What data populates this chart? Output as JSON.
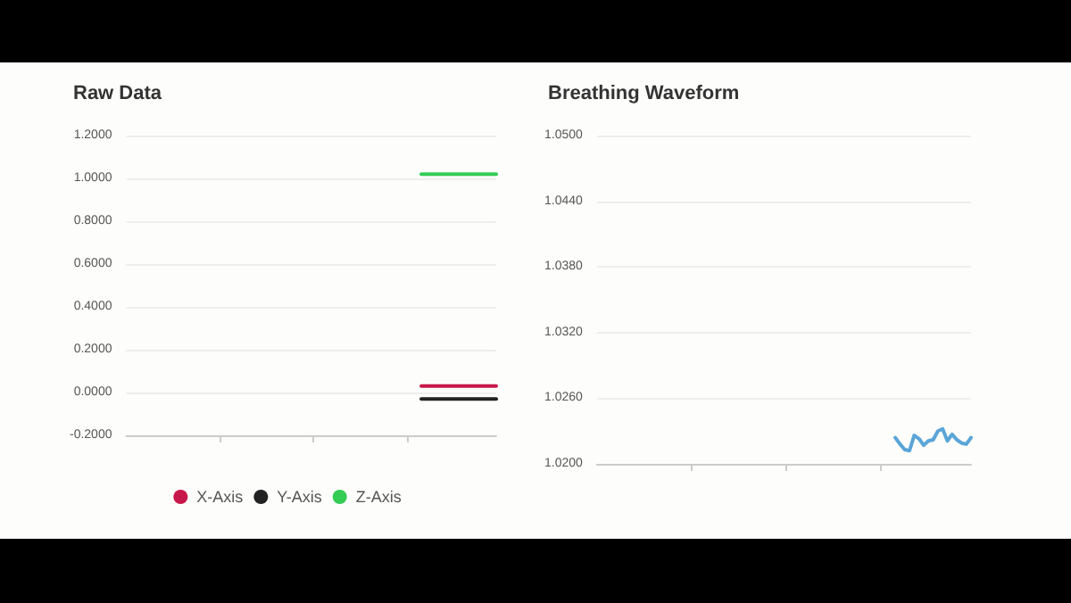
{
  "chart_data": [
    {
      "type": "line",
      "title": "Raw Data",
      "categories": [
        null,
        null,
        null,
        null,
        null,
        null,
        null,
        null,
        null,
        null,
        null,
        null,
        null,
        null,
        null,
        null,
        null,
        null,
        null,
        null,
        null,
        null,
        null,
        null,
        null,
        null,
        null,
        null,
        null,
        null,
        null,
        null,
        null,
        null,
        null,
        null,
        null,
        null,
        null,
        null,
        null,
        null,
        null,
        null,
        null,
        null,
        null,
        null,
        null,
        null,
        null,
        null,
        null,
        null,
        null,
        null,
        null,
        null,
        null,
        null,
        null,
        null,
        null,
        null,
        null,
        null,
        null,
        null,
        null,
        null,
        null,
        null,
        null,
        null,
        null,
        null,
        null,
        null,
        null,
        null
      ],
      "series": [
        {
          "name": "X-Axis",
          "color": "#c8174a",
          "values": [
            null,
            null,
            null,
            null,
            null,
            null,
            null,
            null,
            null,
            null,
            null,
            null,
            null,
            null,
            null,
            null,
            null,
            null,
            null,
            null,
            null,
            null,
            null,
            null,
            null,
            null,
            null,
            null,
            null,
            null,
            null,
            null,
            null,
            null,
            null,
            null,
            null,
            null,
            null,
            null,
            null,
            null,
            null,
            null,
            null,
            null,
            null,
            null,
            null,
            null,
            null,
            null,
            null,
            null,
            null,
            null,
            null,
            null,
            null,
            null,
            null,
            null,
            null,
            0.03,
            0.03,
            0.03,
            0.03,
            0.03,
            0.03,
            0.03,
            0.03,
            0.03,
            0.03,
            0.03,
            0.03,
            0.03,
            0.03,
            0.03,
            0.03,
            0.03
          ]
        },
        {
          "name": "Y-Axis",
          "color": "#222222",
          "values": [
            null,
            null,
            null,
            null,
            null,
            null,
            null,
            null,
            null,
            null,
            null,
            null,
            null,
            null,
            null,
            null,
            null,
            null,
            null,
            null,
            null,
            null,
            null,
            null,
            null,
            null,
            null,
            null,
            null,
            null,
            null,
            null,
            null,
            null,
            null,
            null,
            null,
            null,
            null,
            null,
            null,
            null,
            null,
            null,
            null,
            null,
            null,
            null,
            null,
            null,
            null,
            null,
            null,
            null,
            null,
            null,
            null,
            null,
            null,
            null,
            null,
            null,
            null,
            -0.03,
            -0.03,
            -0.03,
            -0.03,
            -0.03,
            -0.03,
            -0.03,
            -0.03,
            -0.03,
            -0.03,
            -0.03,
            -0.03,
            -0.03,
            -0.03,
            -0.03,
            -0.03,
            -0.03
          ]
        },
        {
          "name": "Z-Axis",
          "color": "#33cc55",
          "values": [
            null,
            null,
            null,
            null,
            null,
            null,
            null,
            null,
            null,
            null,
            null,
            null,
            null,
            null,
            null,
            null,
            null,
            null,
            null,
            null,
            null,
            null,
            null,
            null,
            null,
            null,
            null,
            null,
            null,
            null,
            null,
            null,
            null,
            null,
            null,
            null,
            null,
            null,
            null,
            null,
            null,
            null,
            null,
            null,
            null,
            null,
            null,
            null,
            null,
            null,
            null,
            null,
            null,
            null,
            null,
            null,
            null,
            null,
            null,
            null,
            null,
            null,
            null,
            1.02,
            1.02,
            1.02,
            1.02,
            1.02,
            1.02,
            1.02,
            1.02,
            1.02,
            1.02,
            1.02,
            1.02,
            1.02,
            1.02,
            1.02,
            1.02,
            1.02
          ]
        }
      ],
      "ylim": [
        -0.2,
        1.2
      ],
      "yticks": [
        {
          "value": -0.2,
          "label": "-0.2000"
        },
        {
          "value": 0,
          "label": "0.0000"
        },
        {
          "value": 0.2,
          "label": "0.2000"
        },
        {
          "value": 0.4,
          "label": "0.4000"
        },
        {
          "value": 0.6,
          "label": "0.6000"
        },
        {
          "value": 0.8,
          "label": "0.8000"
        },
        {
          "value": 1,
          "label": "1.0000"
        },
        {
          "value": 1.2,
          "label": "1.2000"
        }
      ],
      "grid": "y",
      "legend": "bottom",
      "tick_labels": "y",
      "marker": "none",
      "line_style": "solid"
    },
    {
      "type": "line",
      "title": "Breathing Waveform",
      "categories": [
        null,
        null,
        null,
        null,
        null,
        null,
        null,
        null,
        null,
        null,
        null,
        null,
        null,
        null,
        null,
        null,
        null,
        null,
        null,
        null,
        null,
        null,
        null,
        null,
        null,
        null,
        null,
        null,
        null,
        null,
        null,
        null,
        null,
        null,
        null,
        null,
        null,
        null,
        null,
        null,
        null,
        null,
        null,
        null,
        null,
        null,
        null,
        null,
        null,
        null,
        null,
        null,
        null,
        null,
        null,
        null,
        null,
        null,
        null,
        null,
        null,
        null,
        null,
        null,
        null,
        null,
        null,
        null,
        null,
        null,
        null,
        null,
        null,
        null,
        null,
        null,
        null,
        null,
        null,
        null
      ],
      "series": [
        {
          "color": "#5aa5d8",
          "values": [
            null,
            null,
            null,
            null,
            null,
            null,
            null,
            null,
            null,
            null,
            null,
            null,
            null,
            null,
            null,
            null,
            null,
            null,
            null,
            null,
            null,
            null,
            null,
            null,
            null,
            null,
            null,
            null,
            null,
            null,
            null,
            null,
            null,
            null,
            null,
            null,
            null,
            null,
            null,
            null,
            null,
            null,
            null,
            null,
            null,
            null,
            null,
            null,
            null,
            null,
            null,
            null,
            null,
            null,
            null,
            null,
            null,
            null,
            null,
            null,
            null,
            null,
            null,
            1.0224,
            1.0218,
            1.0213,
            1.0212,
            1.0226,
            1.0223,
            1.0217,
            1.0221,
            1.0222,
            1.023,
            1.0232,
            1.0221,
            1.0227,
            1.0222,
            1.0219,
            1.0218,
            1.0224
          ]
        }
      ],
      "ylim": [
        1.02,
        1.05
      ],
      "yticks": [
        {
          "value": 1.02,
          "label": "1.0200"
        },
        {
          "value": 1.026,
          "label": "1.0260"
        },
        {
          "value": 1.032,
          "label": "1.0320"
        },
        {
          "value": 1.038,
          "label": "1.0380"
        },
        {
          "value": 1.044,
          "label": "1.0440"
        },
        {
          "value": 1.05,
          "label": "1.0500"
        }
      ],
      "grid": "y",
      "tick_labels": "y",
      "marker": "none",
      "line_style": "solid"
    }
  ]
}
